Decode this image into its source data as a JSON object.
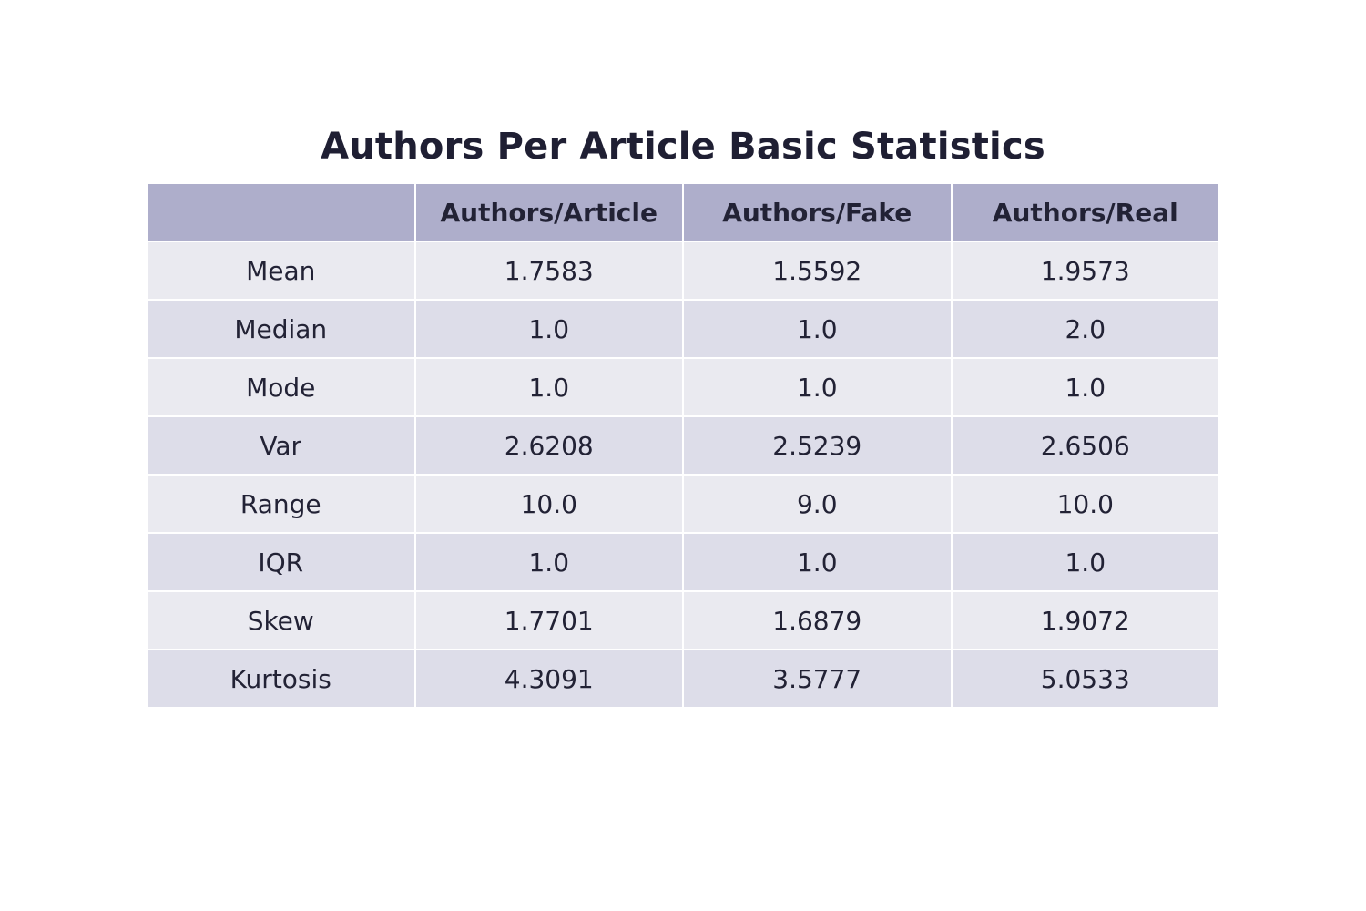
{
  "chart_data": {
    "type": "table",
    "title": "Authors Per Article Basic Statistics",
    "columns": [
      "",
      "Authors/Article",
      "Authors/Fake",
      "Authors/Real"
    ],
    "rows": [
      [
        "Mean",
        "1.7583",
        "1.5592",
        "1.9573"
      ],
      [
        "Median",
        "1.0",
        "1.0",
        "2.0"
      ],
      [
        "Mode",
        "1.0",
        "1.0",
        "1.0"
      ],
      [
        "Var",
        "2.6208",
        "2.5239",
        "2.6506"
      ],
      [
        "Range",
        "10.0",
        "9.0",
        "10.0"
      ],
      [
        "IQR",
        "1.0",
        "1.0",
        "1.0"
      ],
      [
        "Skew",
        "1.7701",
        "1.6879",
        "1.9072"
      ],
      [
        "Kurtosis",
        "4.3091",
        "3.5777",
        "5.0533"
      ]
    ],
    "header_color": "#aeaecb",
    "row_colors": [
      "#eaeaf0",
      "#dddde9"
    ],
    "text_color": "#222235"
  }
}
